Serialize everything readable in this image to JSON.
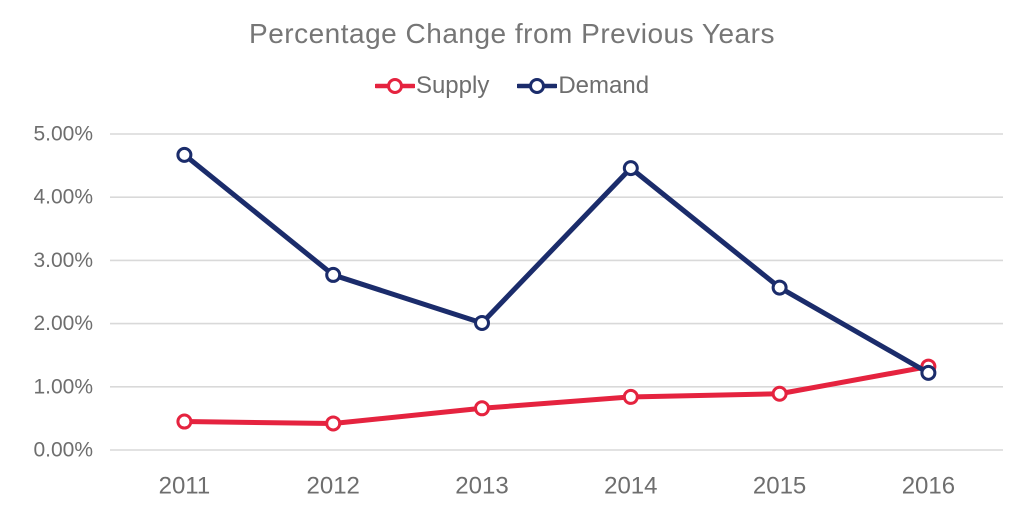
{
  "chart_data": {
    "type": "line",
    "title": "Percentage Change from Previous Years",
    "x_labels": [
      "2011",
      "2012",
      "2013",
      "2014",
      "2015",
      "2016"
    ],
    "y_tick_labels": [
      "0.00%",
      "1.00%",
      "2.00%",
      "3.00%",
      "4.00%",
      "5.00%"
    ],
    "y_tick_values": [
      0,
      1,
      2,
      3,
      4,
      5
    ],
    "ylim": [
      0,
      5
    ],
    "grid": true,
    "legend_position": "top",
    "series": [
      {
        "name": "Supply",
        "color": "#e5233f",
        "values": [
          0.45,
          0.42,
          0.66,
          0.84,
          0.89,
          1.32
        ]
      },
      {
        "name": "Demand",
        "color": "#1b2c6b",
        "values": [
          4.67,
          2.77,
          2.01,
          4.46,
          2.57,
          1.22
        ]
      }
    ],
    "styles": {
      "title_color": "#767676",
      "axis_label_color": "#6e6e6e",
      "gridline_color": "#d9d9d9",
      "marker_fill": "#ffffff"
    }
  }
}
